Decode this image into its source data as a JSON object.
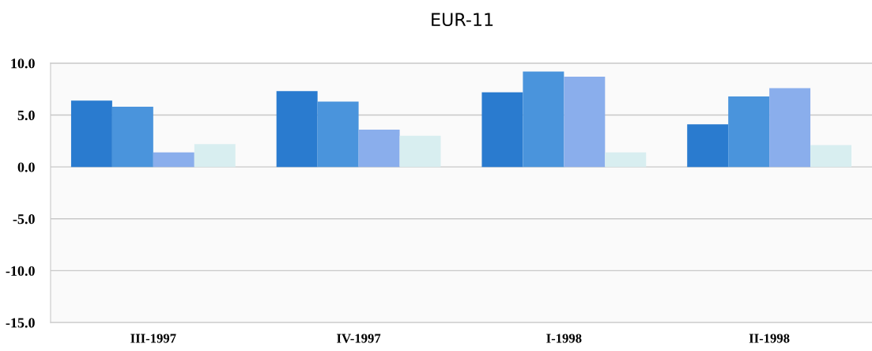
{
  "chart_data": {
    "type": "bar",
    "title": "EUR-11",
    "categories": [
      "III-1997",
      "IV-1997",
      "I-1998",
      "II-1998"
    ],
    "series": [
      {
        "color": "#2a7bcf",
        "values": [
          6.4,
          7.3,
          7.2,
          4.1
        ]
      },
      {
        "color": "#4a94dc",
        "values": [
          5.8,
          6.3,
          9.2,
          6.8
        ]
      },
      {
        "color": "#8aaeec",
        "values": [
          1.4,
          3.6,
          8.7,
          7.6
        ]
      },
      {
        "color": "#d8eef0",
        "values": [
          2.2,
          3.0,
          1.4,
          2.1
        ]
      }
    ],
    "ylim": [
      -15,
      10
    ],
    "yticks": [
      {
        "value": -15,
        "label": "-15.0"
      },
      {
        "value": -10,
        "label": "-10.0"
      },
      {
        "value": -5,
        "label": "-5.0"
      },
      {
        "value": 0,
        "label": "0.0"
      },
      {
        "value": 5,
        "label": "5.0"
      },
      {
        "value": 10,
        "label": "10.0"
      }
    ],
    "grid": "y"
  }
}
